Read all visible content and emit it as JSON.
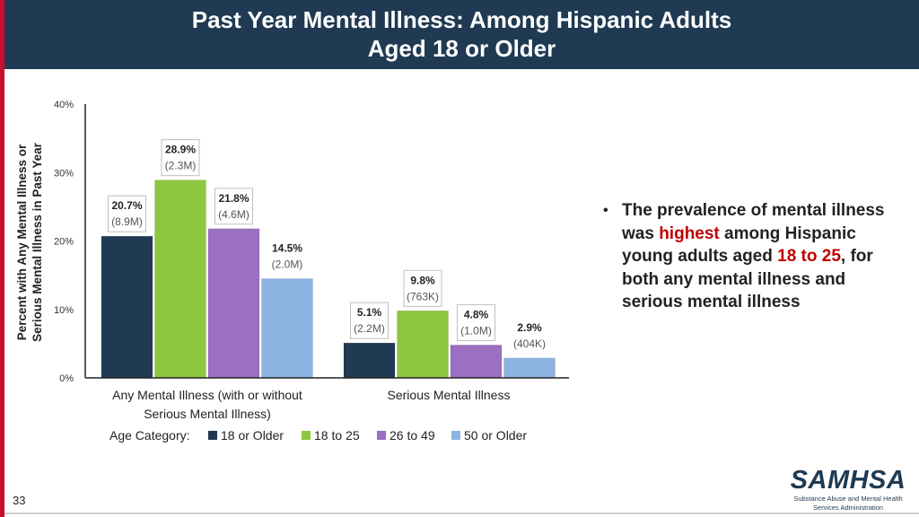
{
  "slide": {
    "title_line1": "Past Year Mental Illness: Among Hispanic Adults",
    "title_line2": "Aged 18 or Older",
    "page_number": "33",
    "logo_name": "SAMHSA",
    "logo_subtitle_1": "Substance Abuse and Mental Health",
    "logo_subtitle_2": "Services Administration"
  },
  "bullet": {
    "seg1": "The prevalence of mental illness was ",
    "seg2": "highest",
    "seg3": " among Hispanic young adults aged ",
    "seg4": "18 to 25",
    "seg5": ", for both any mental illness and serious mental illness"
  },
  "colors": {
    "title_bg": "#1f3a52",
    "accent_red": "#c8102e",
    "highlight": "#c00000"
  },
  "chart_data": {
    "type": "bar",
    "ylabel_line1": "Percent with Any Mental Illness or",
    "ylabel_line2": "Serious Mental Illness in Past Year",
    "ylim": [
      0,
      40
    ],
    "yticks": [
      "0%",
      "10%",
      "20%",
      "30%",
      "40%"
    ],
    "categories": [
      {
        "label_line1": "Any Mental Illness (with or without",
        "label_line2": "Serious Mental Illness)"
      },
      {
        "label_line1": "Serious Mental Illness",
        "label_line2": ""
      }
    ],
    "series": [
      {
        "name": "18 or Older",
        "color": "#1f3a52",
        "values": [
          20.7,
          5.1
        ],
        "labels": [
          "20.7%",
          "5.1%"
        ],
        "subs": [
          "(8.9M)",
          "(2.2M)"
        ]
      },
      {
        "name": "18 to 25",
        "color": "#8dc63f",
        "values": [
          28.9,
          9.8
        ],
        "labels": [
          "28.9%",
          "9.8%"
        ],
        "subs": [
          "(2.3M)",
          "(763K)"
        ]
      },
      {
        "name": "26 to 49",
        "color": "#9b6fc1",
        "values": [
          21.8,
          4.8
        ],
        "labels": [
          "21.8%",
          "4.8%"
        ],
        "subs": [
          "(4.6M)",
          "(1.0M)"
        ]
      },
      {
        "name": "50 or Older",
        "color": "#8db3e2",
        "values": [
          14.5,
          2.9
        ],
        "labels": [
          "14.5%",
          "2.9%"
        ],
        "subs": [
          "(2.0M)",
          "(404K)"
        ]
      }
    ],
    "boxed_series": [
      0,
      1,
      2
    ],
    "legend_title": "Age Category:",
    "legend_position": "bottom"
  }
}
